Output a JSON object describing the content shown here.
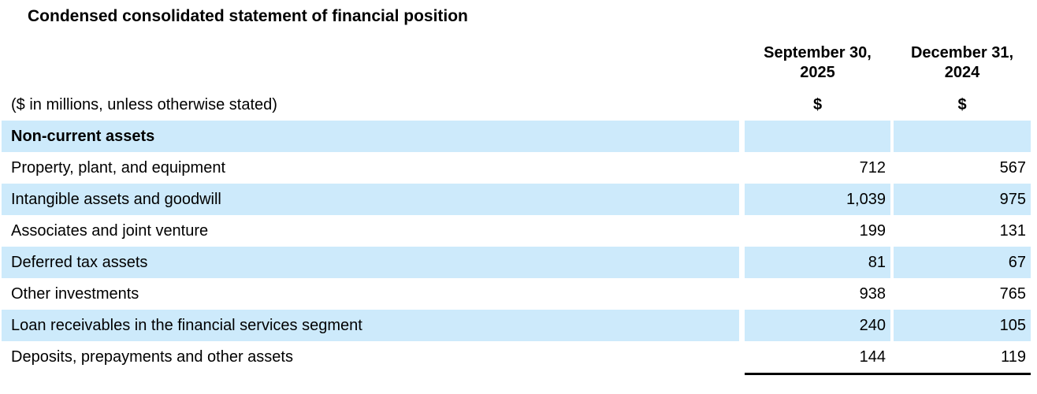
{
  "title": "Condensed consolidated statement of financial position",
  "table": {
    "unit_note": "($ in millions, unless otherwise stated)",
    "columns": [
      {
        "line1": "September 30,",
        "line2": "2025",
        "currency": "$"
      },
      {
        "line1": "December 31,",
        "line2": "2024",
        "currency": "$"
      }
    ],
    "section": "Non-current assets",
    "rows": [
      {
        "label": "Property, plant, and equipment",
        "sep30_2025": "712",
        "dec31_2024": "567"
      },
      {
        "label": "Intangible assets and goodwill",
        "sep30_2025": "1,039",
        "dec31_2024": "975"
      },
      {
        "label": "Associates and joint venture",
        "sep30_2025": "199",
        "dec31_2024": "131"
      },
      {
        "label": "Deferred tax assets",
        "sep30_2025": "81",
        "dec31_2024": "67"
      },
      {
        "label": "Other investments",
        "sep30_2025": "938",
        "dec31_2024": "765"
      },
      {
        "label": "Loan receivables in the financial services segment",
        "sep30_2025": "240",
        "dec31_2024": "105"
      },
      {
        "label": "Deposits, prepayments and other assets",
        "sep30_2025": "144",
        "dec31_2024": "119"
      }
    ]
  },
  "colors": {
    "stripe_blue": "#cdeafb",
    "text": "#000000",
    "rule": "#000000"
  }
}
